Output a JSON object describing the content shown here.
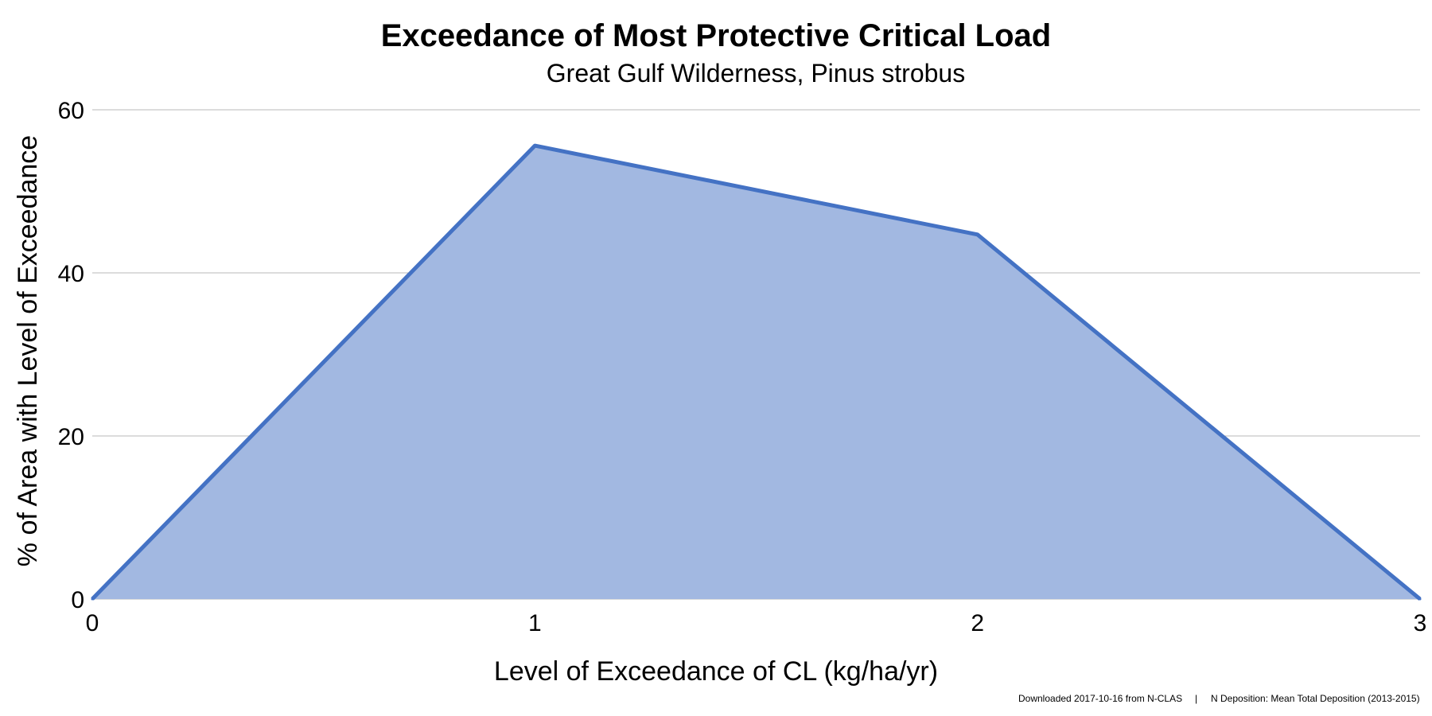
{
  "chart_data": {
    "type": "area",
    "title": "Exceedance of Most Protective Critical Load",
    "subtitle": "Great Gulf Wilderness, Pinus strobus",
    "xlabel": "Level of Exceedance of CL (kg/ha/yr)",
    "ylabel": "% of Area with Level of Exceedance",
    "x": [
      0,
      1,
      2,
      3
    ],
    "series": [
      {
        "values": [
          0,
          55.6,
          44.7,
          0
        ]
      }
    ],
    "xlim": [
      0,
      3
    ],
    "ylim": [
      0,
      60
    ],
    "x_ticks": [
      0,
      1,
      2,
      3
    ],
    "y_ticks": [
      0,
      20,
      40,
      60
    ],
    "grid": true,
    "legend": "none",
    "colors": {
      "line": "#4472C4",
      "fill": "#A2B8E1"
    }
  },
  "footer": {
    "download": "Downloaded 2017-10-16 from N-CLAS",
    "separator": "|",
    "deposition": "N Deposition: Mean Total Deposition (2013-2015)"
  }
}
